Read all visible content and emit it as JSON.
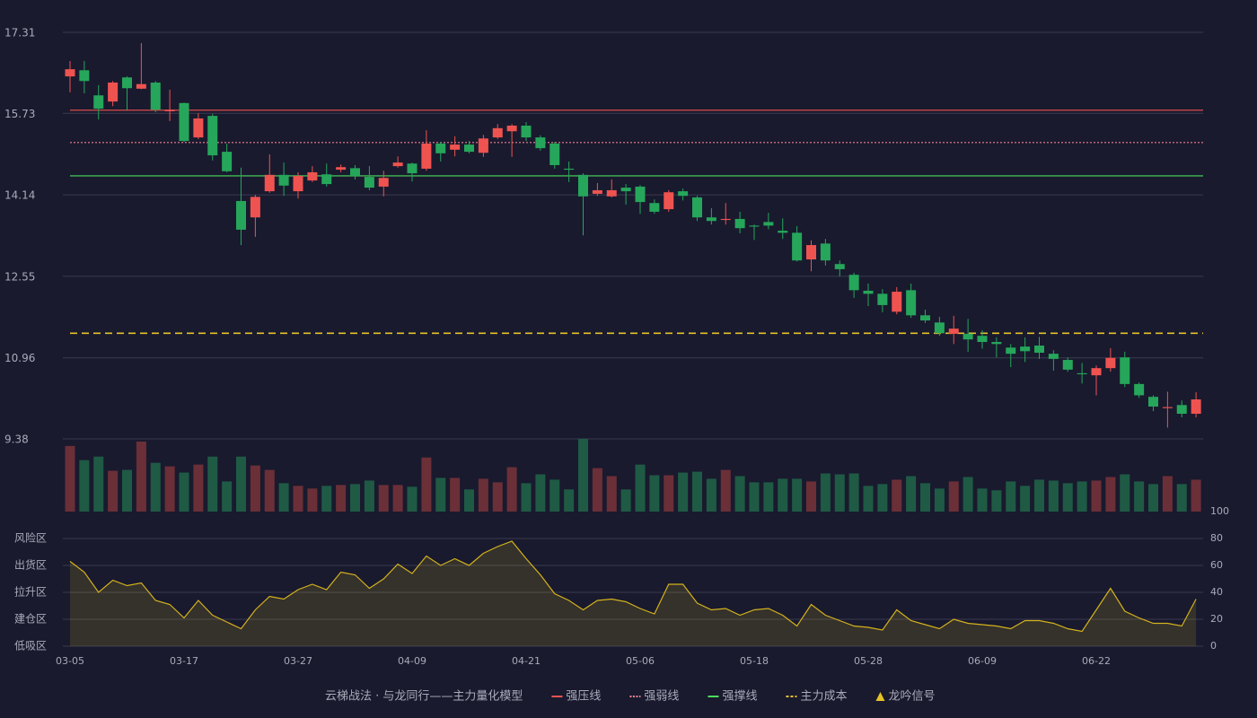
{
  "chart_data": {
    "type": "candlestick",
    "categories": [
      "03-05",
      null,
      null,
      null,
      null,
      null,
      null,
      null,
      "03-17",
      null,
      null,
      null,
      null,
      null,
      null,
      null,
      "03-27",
      null,
      null,
      null,
      null,
      null,
      null,
      null,
      "04-09",
      null,
      null,
      null,
      null,
      null,
      null,
      null,
      "04-21",
      null,
      null,
      null,
      null,
      null,
      null,
      null,
      "05-06",
      null,
      null,
      null,
      null,
      null,
      null,
      null,
      "05-18",
      null,
      null,
      null,
      null,
      null,
      null,
      null,
      "05-28",
      null,
      null,
      null,
      null,
      null,
      null,
      null,
      "06-09",
      null,
      null,
      null,
      null,
      null,
      null,
      null,
      "06-22",
      null,
      null,
      null,
      null,
      null,
      null,
      null
    ],
    "open": [
      16.45,
      16.57,
      16.08,
      15.96,
      16.43,
      16.21,
      16.33,
      15.77,
      15.93,
      15.26,
      15.68,
      14.98,
      14.02,
      13.7,
      14.21,
      14.53,
      14.21,
      14.42,
      14.54,
      14.63,
      14.66,
      14.49,
      14.3,
      14.7,
      14.75,
      14.65,
      15.14,
      15.02,
      15.12,
      14.96,
      15.26,
      15.38,
      15.49,
      15.26,
      15.14,
      14.65,
      14.53,
      14.16,
      14.11,
      14.28,
      14.3,
      13.98,
      13.86,
      14.21,
      14.09,
      13.7,
      13.65,
      13.67,
      13.54,
      13.61,
      13.44,
      13.4,
      12.88,
      13.19,
      12.79,
      12.58,
      12.27,
      12.21,
      11.86,
      12.28,
      11.79,
      11.65,
      11.43,
      11.43,
      11.39,
      11.27,
      11.16,
      11.18,
      11.2,
      11.04,
      10.92,
      10.66,
      10.62,
      10.76,
      10.97,
      10.45,
      10.2,
      9.98,
      10.04,
      9.87
    ],
    "high": [
      16.75,
      16.75,
      16.28,
      16.36,
      16.45,
      17.1,
      16.36,
      16.19,
      15.94,
      15.73,
      15.72,
      15.14,
      14.67,
      14.14,
      14.93,
      14.77,
      14.58,
      14.7,
      14.75,
      14.73,
      14.72,
      14.7,
      14.61,
      14.89,
      14.77,
      15.4,
      15.17,
      15.28,
      15.19,
      15.31,
      15.52,
      15.52,
      15.56,
      15.3,
      15.17,
      14.79,
      14.56,
      14.37,
      14.44,
      14.35,
      14.33,
      14.05,
      14.23,
      14.26,
      14.12,
      13.88,
      13.98,
      13.81,
      13.56,
      13.79,
      13.68,
      13.53,
      13.25,
      13.28,
      12.86,
      12.62,
      12.41,
      12.3,
      12.34,
      12.41,
      11.9,
      11.76,
      11.78,
      11.72,
      11.5,
      11.36,
      11.23,
      11.36,
      11.37,
      11.11,
      10.97,
      10.86,
      10.81,
      11.15,
      11.08,
      10.48,
      10.23,
      10.3,
      10.13,
      10.29
    ],
    "low": [
      16.14,
      16.12,
      15.61,
      15.87,
      15.79,
      16.2,
      15.75,
      15.58,
      15.17,
      15.23,
      14.81,
      14.58,
      13.16,
      13.32,
      14.18,
      14.12,
      14.07,
      14.39,
      14.3,
      14.58,
      14.44,
      14.23,
      14.11,
      14.67,
      14.4,
      14.61,
      14.79,
      14.89,
      14.95,
      14.88,
      15.23,
      14.88,
      15.19,
      15.0,
      14.65,
      14.39,
      13.35,
      14.12,
      14.09,
      13.95,
      13.77,
      13.77,
      13.81,
      14.03,
      13.63,
      13.56,
      13.56,
      13.39,
      13.26,
      13.47,
      13.28,
      12.84,
      12.65,
      12.76,
      12.55,
      12.13,
      11.97,
      11.85,
      11.81,
      11.74,
      11.64,
      11.39,
      11.23,
      11.08,
      11.14,
      10.97,
      10.78,
      10.88,
      10.94,
      10.71,
      10.69,
      10.46,
      10.23,
      10.69,
      10.39,
      10.18,
      9.92,
      9.6,
      9.8,
      9.8
    ],
    "close": [
      16.59,
      16.36,
      15.82,
      16.33,
      16.22,
      16.3,
      15.8,
      15.8,
      15.19,
      15.63,
      14.91,
      14.6,
      13.46,
      14.1,
      14.53,
      14.32,
      14.51,
      14.58,
      14.35,
      14.68,
      14.51,
      14.28,
      14.47,
      14.77,
      14.56,
      15.14,
      14.95,
      15.12,
      14.98,
      15.24,
      15.44,
      15.49,
      15.26,
      15.05,
      14.72,
      14.63,
      14.11,
      14.23,
      14.23,
      14.21,
      14.0,
      13.81,
      14.19,
      14.12,
      13.7,
      13.63,
      13.67,
      13.49,
      13.52,
      13.54,
      13.4,
      12.86,
      13.16,
      12.86,
      12.69,
      12.28,
      12.21,
      11.99,
      12.25,
      11.79,
      11.69,
      11.44,
      11.53,
      11.32,
      11.27,
      11.23,
      11.04,
      11.09,
      11.06,
      10.94,
      10.73,
      10.64,
      10.76,
      10.96,
      10.45,
      10.23,
      10.01,
      10.0,
      9.87,
      10.15
    ],
    "up_color": "#ef5350",
    "down_color": "#26a65b",
    "ylim": [
      9.38,
      17.31
    ],
    "yticks": [
      17.31,
      15.73,
      14.14,
      12.55,
      10.96,
      9.38
    ],
    "grid": true,
    "lines": [
      {
        "name": "强压线",
        "value": 15.79,
        "color": "#ef5350",
        "style": "solid"
      },
      {
        "name": "强弱线",
        "value": 15.16,
        "color": "#f08090",
        "style": "dotted"
      },
      {
        "name": "强撑线",
        "value": 14.51,
        "color": "#4cdc5c",
        "style": "solid"
      },
      {
        "name": "主力成本",
        "value": 11.44,
        "color": "#e6c229",
        "style": "dashed"
      }
    ],
    "signal": {
      "name": "龙吟信号",
      "color": "#e6c229"
    },
    "legend_title": "云梯战法 · 与龙同行——主力量化模型",
    "volume": {
      "values": [
        74,
        58,
        62,
        46,
        47,
        79,
        55,
        51,
        44,
        53,
        62,
        34,
        62,
        52,
        47,
        32,
        29,
        26,
        29,
        30,
        31,
        35,
        30,
        30,
        28,
        61,
        38,
        38,
        25,
        37,
        33,
        50,
        32,
        42,
        36,
        25,
        82,
        49,
        40,
        25,
        53,
        41,
        41,
        44,
        45,
        37,
        47,
        40,
        33,
        33,
        37,
        37,
        34,
        43,
        42,
        43,
        29,
        31,
        36,
        40,
        32,
        26,
        34,
        39,
        26,
        24,
        34,
        29,
        36,
        35,
        32,
        34,
        35,
        39,
        42,
        34,
        31,
        40,
        31,
        36
      ],
      "up_color": "#6b2f38",
      "down_color": "#1f5a45"
    },
    "oscillator": {
      "values": [
        63,
        55,
        40,
        49,
        45,
        47,
        34,
        31,
        21,
        34,
        23,
        18,
        13,
        27,
        37,
        35,
        42,
        46,
        42,
        55,
        53,
        43,
        50,
        61,
        54,
        67,
        60,
        65,
        60,
        69,
        74,
        78,
        65,
        53,
        39,
        34,
        27,
        34,
        35,
        33,
        28,
        24,
        46,
        46,
        32,
        27,
        28,
        23,
        27,
        28,
        23,
        15,
        31,
        23,
        19,
        15,
        14,
        12,
        27,
        19,
        16,
        13,
        20,
        17,
        16,
        15,
        13,
        19,
        19,
        17,
        13,
        11,
        27,
        43,
        26,
        21,
        17,
        17,
        15,
        35
      ],
      "color": "#d4b21c",
      "ylim": [
        0,
        100
      ],
      "yticks": [
        0,
        20,
        40,
        60,
        80,
        100
      ],
      "ytick_colors": [
        "#e53935",
        "#f0a030",
        "#4a90e2",
        "#e040e0",
        "#f0a030",
        "#4cdc5c"
      ],
      "zones": [
        {
          "label": "风险区",
          "value": 80,
          "color": "#f0a030"
        },
        {
          "label": "出货区",
          "value": 60,
          "color": "#e040e0"
        },
        {
          "label": "拉升区",
          "value": 40,
          "color": "#4a90e2"
        },
        {
          "label": "建仓区",
          "value": 20,
          "color": "#e57373"
        },
        {
          "label": "低吸区",
          "value": 0,
          "color": "#e53935"
        }
      ]
    }
  }
}
